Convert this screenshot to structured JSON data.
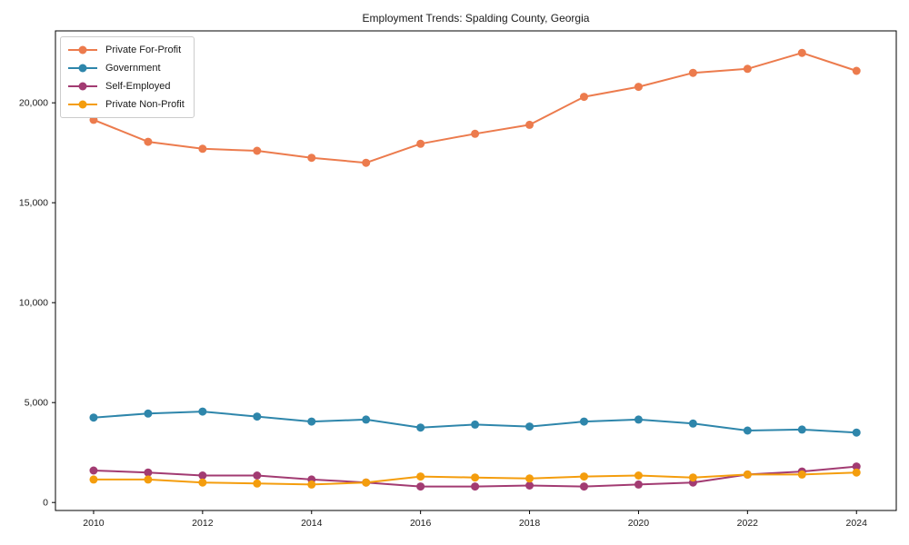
{
  "figure": {
    "background": "#ffffff",
    "border_color": "#000000"
  },
  "chart_data": {
    "type": "line",
    "title": "Employment Trends: Spalding County, Georgia",
    "xlabel": "",
    "ylabel": "",
    "x": [
      2010,
      2011,
      2012,
      2013,
      2014,
      2015,
      2016,
      2017,
      2018,
      2019,
      2020,
      2021,
      2022,
      2023,
      2024
    ],
    "series": [
      {
        "name": "Private For-Profit",
        "color": "#EC7B4D",
        "values": [
          19150,
          18050,
          17700,
          17600,
          17250,
          17000,
          17950,
          18450,
          18900,
          20300,
          20800,
          21500,
          21700,
          22500,
          21600
        ]
      },
      {
        "name": "Government",
        "color": "#2E86AB",
        "values": [
          4250,
          4450,
          4550,
          4300,
          4050,
          4150,
          3750,
          3900,
          3800,
          4050,
          4150,
          3950,
          3600,
          3650,
          3500
        ]
      },
      {
        "name": "Self-Employed",
        "color": "#A23B72",
        "values": [
          1600,
          1500,
          1350,
          1350,
          1150,
          1000,
          800,
          800,
          850,
          800,
          900,
          1000,
          1400,
          1550,
          1800
        ]
      },
      {
        "name": "Private Non-Profit",
        "color": "#F49D0D",
        "values": [
          1150,
          1150,
          1000,
          950,
          900,
          1000,
          1300,
          1250,
          1200,
          1300,
          1350,
          1250,
          1400,
          1400,
          1500
        ]
      }
    ],
    "xticks": {
      "values": [
        2010,
        2012,
        2014,
        2016,
        2018,
        2020,
        2022,
        2024
      ],
      "labels": [
        "2010",
        "2012",
        "2014",
        "2016",
        "2018",
        "2020",
        "2022",
        "2024"
      ]
    },
    "yticks": {
      "values": [
        0,
        5000,
        10000,
        15000,
        20000
      ],
      "labels": [
        "0",
        "5,000",
        "10,000",
        "15,000",
        "20,000"
      ]
    },
    "xlim": [
      2009.3,
      2024.73
    ],
    "ylim": [
      -400,
      23600
    ],
    "grid": false,
    "legend_position": "upper-left"
  }
}
